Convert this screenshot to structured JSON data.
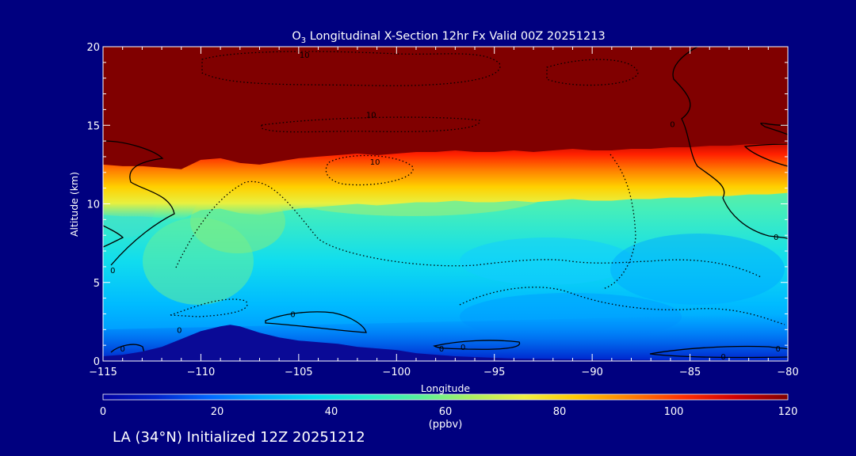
{
  "chart_data": {
    "type": "heatmap",
    "title_prefix": "O",
    "title_sub": "3",
    "title_rest": " Longitudinal X-Section 12hr  Fx Valid 00Z 20251213",
    "xlabel": "Longitude",
    "ylabel": "Altitude (km)",
    "xlim": [
      -115,
      -80
    ],
    "ylim": [
      0,
      20
    ],
    "x_ticks": [
      -115,
      -110,
      -105,
      -100,
      -95,
      -90,
      -85,
      -80
    ],
    "x_tick_labels": [
      "−115",
      "−110",
      "−105",
      "−100",
      "−95",
      "−90",
      "−85",
      "−80"
    ],
    "y_ticks": [
      0,
      5,
      10,
      15,
      20
    ],
    "y_tick_labels": [
      "0",
      "5",
      "10",
      "15",
      "20"
    ],
    "tropopause_altitude_km": [
      12.5,
      12.4,
      12.4,
      12.3,
      12.2,
      12.8,
      12.9,
      12.6,
      12.5,
      12.7,
      12.9,
      13.0,
      13.1,
      13.2,
      13.1,
      13.2,
      13.3,
      13.3,
      13.4,
      13.3,
      13.3,
      13.4,
      13.3,
      13.4,
      13.5,
      13.4,
      13.4,
      13.5,
      13.5,
      13.6,
      13.6,
      13.7,
      13.7,
      13.8,
      13.8,
      13.9
    ],
    "terrain": {
      "longitude": [
        -115,
        -114,
        -113,
        -112,
        -111,
        -110,
        -109,
        -108.5,
        -108,
        -107,
        -106,
        -105,
        -104,
        -103,
        -102,
        -101,
        -100,
        -99,
        -98,
        -97,
        -96,
        -95,
        -94,
        -90,
        -85,
        -80
      ],
      "altitude_km": [
        0.3,
        0.4,
        0.6,
        0.9,
        1.4,
        1.9,
        2.2,
        2.3,
        2.2,
        1.8,
        1.5,
        1.3,
        1.2,
        1.1,
        0.9,
        0.8,
        0.7,
        0.5,
        0.4,
        0.3,
        0.25,
        0.2,
        0.15,
        0.1,
        0.05,
        0.05
      ]
    },
    "contour_labels": [
      {
        "text": "10",
        "x": -104.7,
        "y": 19.5
      },
      {
        "text": "10",
        "x": -101.3,
        "y": 15.7
      },
      {
        "text": "10",
        "x": -101.1,
        "y": 12.7
      },
      {
        "text": "0",
        "x": -114.5,
        "y": 5.8
      },
      {
        "text": "0",
        "x": -114,
        "y": 0.8
      },
      {
        "text": "0",
        "x": -111.1,
        "y": 2.0
      },
      {
        "text": "0",
        "x": -105.3,
        "y": 3.0
      },
      {
        "text": "0",
        "x": -97.7,
        "y": 0.8
      },
      {
        "text": "0",
        "x": -96.6,
        "y": 0.9
      },
      {
        "text": "0",
        "x": -85.9,
        "y": 15.1
      },
      {
        "text": "0",
        "x": -83.3,
        "y": 0.3
      },
      {
        "text": "0",
        "x": -80.6,
        "y": 7.9
      },
      {
        "text": "0",
        "x": -80.5,
        "y": 0.8
      }
    ],
    "colorbar": {
      "min": 0,
      "max": 120,
      "ticks": [
        0,
        20,
        40,
        60,
        80,
        100,
        120
      ],
      "tick_labels": [
        "0",
        "20",
        "40",
        "60",
        "80",
        "100",
        "120"
      ],
      "unit": "(ppbv)",
      "stops": [
        "#0000a0",
        "#0022cc",
        "#0066ff",
        "#00aaff",
        "#00ddee",
        "#22eecc",
        "#55f09a",
        "#aaf060",
        "#f0f040",
        "#ffc800",
        "#ff8000",
        "#ff3000",
        "#d00000",
        "#800000"
      ]
    }
  },
  "caption": "LA (34°N) Initialized 12Z 20251212",
  "colors": {
    "background": "#00007f",
    "stratosphere": "#800000",
    "terrain": "#0a0a96"
  }
}
